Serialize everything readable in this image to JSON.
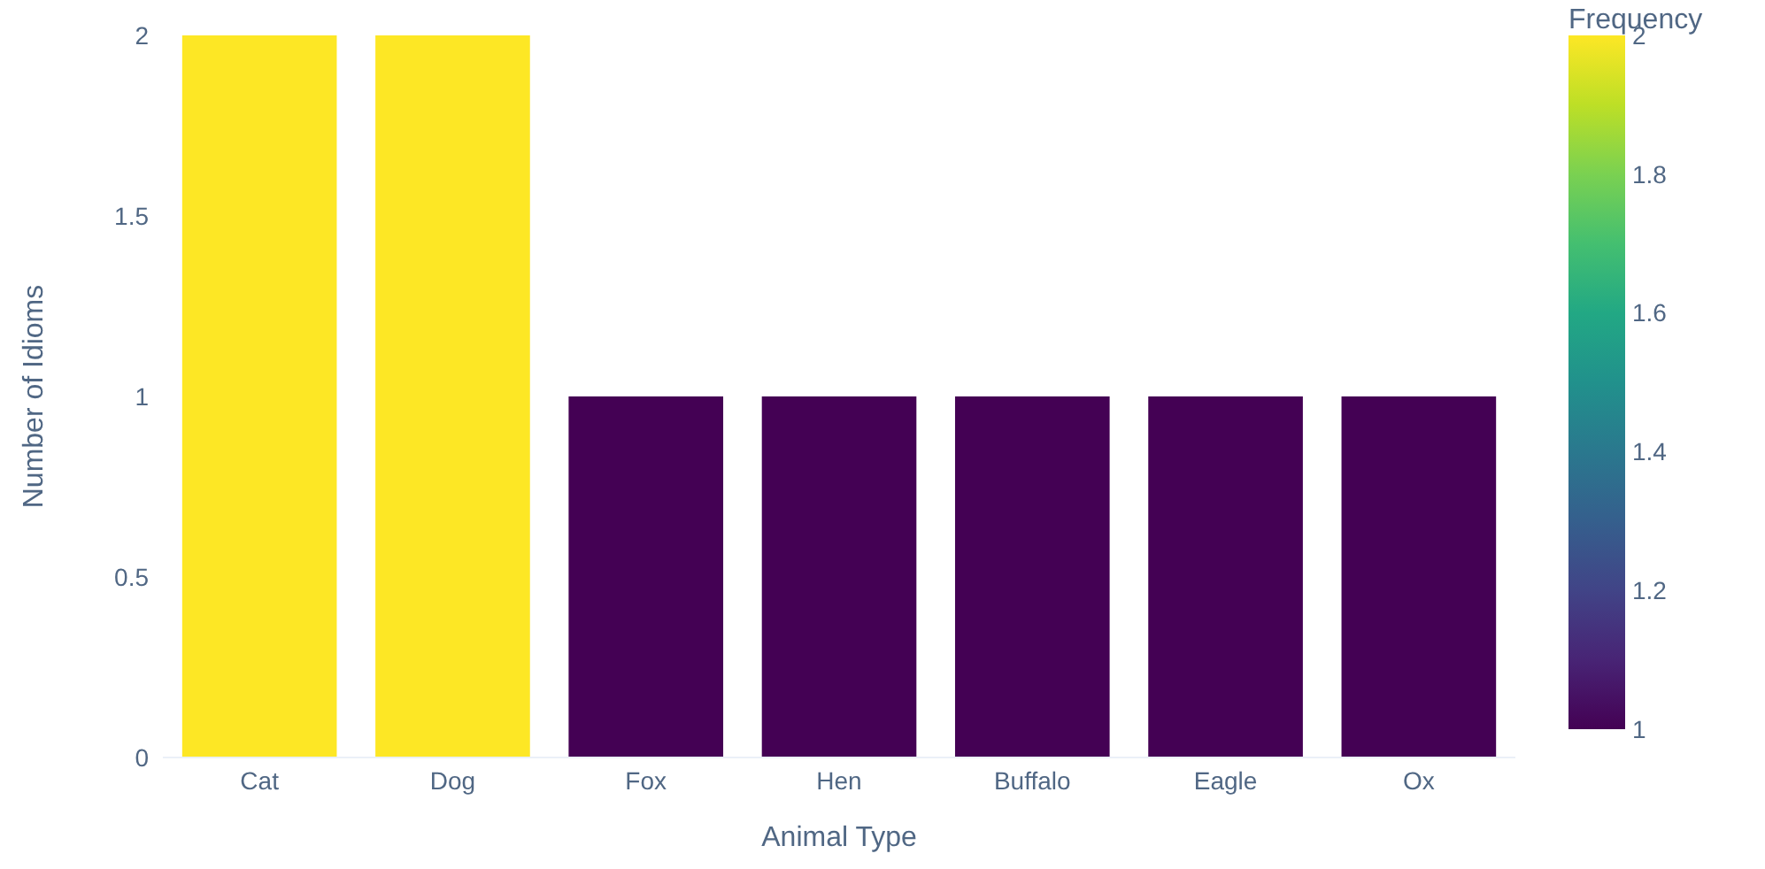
{
  "chart_data": {
    "type": "bar",
    "xlabel": "Animal Type",
    "ylabel": "Number of Idioms",
    "clabel": "Frequency",
    "categories": [
      "Cat",
      "Dog",
      "Fox",
      "Hen",
      "Buffalo",
      "Eagle",
      "Ox"
    ],
    "values": [
      2,
      2,
      1,
      1,
      1,
      1,
      1
    ],
    "colors": [
      "#fde725",
      "#fde725",
      "#440154",
      "#440154",
      "#440154",
      "#440154",
      "#440154"
    ],
    "ylim": [
      0,
      2
    ],
    "yticks": [
      0,
      0.5,
      1,
      1.5,
      2
    ],
    "clim": [
      1,
      2
    ],
    "cticks": [
      1,
      1.2,
      1.4,
      1.6,
      1.8,
      2
    ],
    "grid": false
  }
}
